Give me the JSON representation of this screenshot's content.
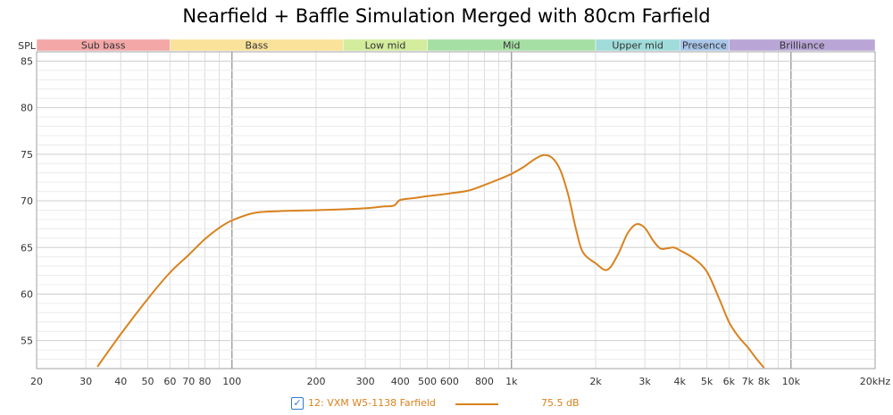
{
  "chart_data": {
    "type": "line",
    "title": "Nearfield + Baffle Simulation Merged with 80cm Farfield",
    "ylabel": "SPL",
    "x_scale": "log",
    "xlim": [
      20,
      20000
    ],
    "ylim": [
      52,
      86
    ],
    "grid": true,
    "legend_position": "bottom",
    "x_ticks": [
      {
        "v": 20,
        "label": "20"
      },
      {
        "v": 30,
        "label": "30"
      },
      {
        "v": 40,
        "label": "40"
      },
      {
        "v": 50,
        "label": "50"
      },
      {
        "v": 60,
        "label": "60"
      },
      {
        "v": 70,
        "label": "70"
      },
      {
        "v": 80,
        "label": "80"
      },
      {
        "v": 100,
        "label": "100"
      },
      {
        "v": 200,
        "label": "200"
      },
      {
        "v": 300,
        "label": "300"
      },
      {
        "v": 400,
        "label": "400"
      },
      {
        "v": 500,
        "label": "500"
      },
      {
        "v": 600,
        "label": "600"
      },
      {
        "v": 800,
        "label": "800"
      },
      {
        "v": 1000,
        "label": "1k"
      },
      {
        "v": 2000,
        "label": "2k"
      },
      {
        "v": 3000,
        "label": "3k"
      },
      {
        "v": 4000,
        "label": "4k"
      },
      {
        "v": 5000,
        "label": "5k"
      },
      {
        "v": 6000,
        "label": "6k"
      },
      {
        "v": 7000,
        "label": "7k"
      },
      {
        "v": 8000,
        "label": "8k"
      },
      {
        "v": 10000,
        "label": "10k"
      },
      {
        "v": 20000,
        "label": "20kHz"
      }
    ],
    "y_ticks": [
      {
        "v": 55,
        "label": "55"
      },
      {
        "v": 60,
        "label": "60"
      },
      {
        "v": 65,
        "label": "65"
      },
      {
        "v": 70,
        "label": "70"
      },
      {
        "v": 75,
        "label": "75"
      },
      {
        "v": 80,
        "label": "80"
      },
      {
        "v": 85,
        "label": "85"
      }
    ],
    "bands": [
      {
        "name": "Sub bass",
        "from": 20,
        "to": 60,
        "color": "#f4a7a7"
      },
      {
        "name": "Bass",
        "from": 60,
        "to": 250,
        "color": "#fbe29a"
      },
      {
        "name": "Low mid",
        "from": 250,
        "to": 500,
        "color": "#d3ec9c"
      },
      {
        "name": "Mid",
        "from": 500,
        "to": 2000,
        "color": "#a6dfa4"
      },
      {
        "name": "Upper mid",
        "from": 2000,
        "to": 4000,
        "color": "#9fdcd9"
      },
      {
        "name": "Presence",
        "from": 4000,
        "to": 6000,
        "color": "#a9c6ea"
      },
      {
        "name": "Brilliance",
        "from": 6000,
        "to": 20000,
        "color": "#b9a5d6"
      }
    ],
    "series": [
      {
        "name": "12: VXM W5-1138 Farfield",
        "color": "#d9821f",
        "legend_value": "75.5 dB",
        "points": [
          [
            33,
            52.2
          ],
          [
            40,
            55.7
          ],
          [
            50,
            59.5
          ],
          [
            60,
            62.3
          ],
          [
            70,
            64.2
          ],
          [
            80,
            65.9
          ],
          [
            90,
            67.1
          ],
          [
            100,
            67.9
          ],
          [
            120,
            68.7
          ],
          [
            150,
            68.9
          ],
          [
            200,
            69.0
          ],
          [
            250,
            69.1
          ],
          [
            300,
            69.2
          ],
          [
            350,
            69.4
          ],
          [
            380,
            69.5
          ],
          [
            400,
            70.1
          ],
          [
            450,
            70.3
          ],
          [
            500,
            70.5
          ],
          [
            600,
            70.8
          ],
          [
            700,
            71.1
          ],
          [
            800,
            71.7
          ],
          [
            900,
            72.3
          ],
          [
            1000,
            72.9
          ],
          [
            1100,
            73.6
          ],
          [
            1200,
            74.4
          ],
          [
            1300,
            74.9
          ],
          [
            1400,
            74.6
          ],
          [
            1500,
            73.2
          ],
          [
            1600,
            70.5
          ],
          [
            1700,
            67.0
          ],
          [
            1800,
            64.5
          ],
          [
            2000,
            63.3
          ],
          [
            2200,
            62.6
          ],
          [
            2400,
            64.2
          ],
          [
            2600,
            66.5
          ],
          [
            2800,
            67.5
          ],
          [
            3000,
            67.1
          ],
          [
            3200,
            65.8
          ],
          [
            3400,
            64.9
          ],
          [
            3600,
            64.9
          ],
          [
            3800,
            65.0
          ],
          [
            4000,
            64.7
          ],
          [
            4500,
            63.8
          ],
          [
            5000,
            62.4
          ],
          [
            5500,
            59.7
          ],
          [
            6000,
            57.0
          ],
          [
            6500,
            55.4
          ],
          [
            7000,
            54.3
          ],
          [
            7500,
            53.1
          ],
          [
            8000,
            52.1
          ]
        ]
      }
    ]
  }
}
